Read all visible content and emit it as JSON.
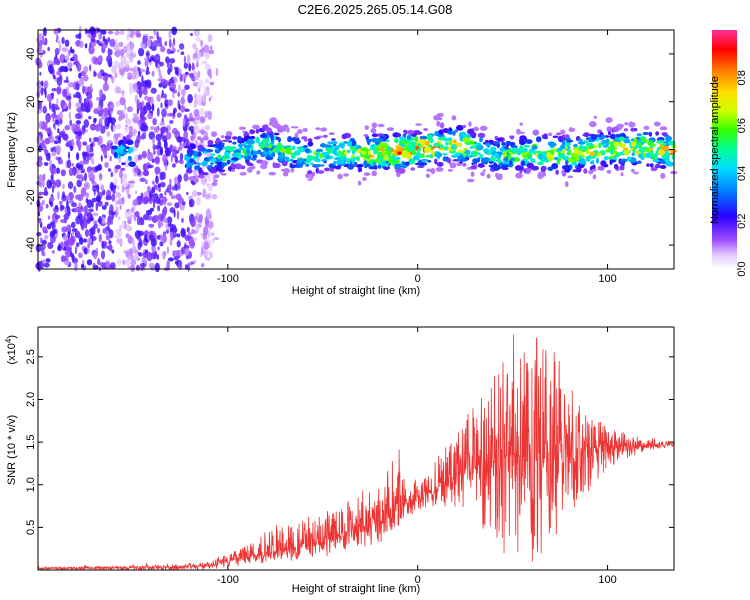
{
  "title": "C2E6.2025.265.05.14.G08",
  "chart_data": [
    {
      "type": "heatmap",
      "name": "spectrogram",
      "xlabel": "Height of straight line (km)",
      "ylabel": "Frequency (Hz)",
      "xlim": [
        -200,
        135
      ],
      "ylim": [
        -50,
        50
      ],
      "x_ticks": [
        -100,
        0,
        100
      ],
      "x_tick_labels": [
        "-100",
        "0",
        "100"
      ],
      "y_ticks": [
        -40,
        -20,
        0,
        20,
        40
      ],
      "y_tick_labels": [
        "-40",
        "-20",
        "0",
        "20",
        "40"
      ],
      "colorbar": {
        "label": "Normalized spectral amplitude",
        "range": [
          0,
          1
        ],
        "ticks": [
          0.0,
          0.2,
          0.4,
          0.6,
          0.8
        ],
        "tick_labels": [
          "0.0",
          "0.2",
          "0.4",
          "0.6",
          "0.8"
        ]
      },
      "band_center_hz": [
        [
          -155,
          -3
        ],
        [
          -140,
          -2
        ],
        [
          -120,
          -3
        ],
        [
          -100,
          -1
        ],
        [
          -80,
          1
        ],
        [
          -60,
          -4
        ],
        [
          -40,
          -1
        ],
        [
          -20,
          0
        ],
        [
          0,
          0
        ],
        [
          20,
          1
        ],
        [
          40,
          -3
        ],
        [
          60,
          0
        ],
        [
          80,
          -1
        ],
        [
          100,
          -1
        ],
        [
          120,
          -1
        ],
        [
          135,
          -1
        ]
      ],
      "band_peak_amplitude": [
        [
          -155,
          0.45
        ],
        [
          -120,
          0.45
        ],
        [
          -100,
          0.55
        ],
        [
          -80,
          0.6
        ],
        [
          -60,
          0.6
        ],
        [
          -40,
          0.65
        ],
        [
          -20,
          0.85
        ],
        [
          0,
          0.9
        ],
        [
          20,
          0.8
        ],
        [
          40,
          0.55
        ],
        [
          60,
          0.7
        ],
        [
          80,
          0.75
        ],
        [
          100,
          0.75
        ],
        [
          120,
          0.8
        ],
        [
          135,
          0.85
        ]
      ]
    },
    {
      "type": "line",
      "name": "snr",
      "xlabel": "Height of straight line (km)",
      "ylabel": "SNR (10 * v/v)",
      "scale_label": "(x10",
      "scale_exponent": "4",
      "scale_close": ")",
      "xlim": [
        -200,
        135
      ],
      "ylim": [
        0,
        2.85
      ],
      "x_ticks": [
        -100,
        0,
        100
      ],
      "x_tick_labels": [
        "-100",
        "0",
        "100"
      ],
      "y_ticks": [
        0.5,
        1.0,
        1.5,
        2.0,
        2.5
      ],
      "y_tick_labels": [
        "0.5",
        "1.0",
        "1.5",
        "2.0",
        "2.5"
      ],
      "color": "#ee3333",
      "envelope": {
        "x": [
          -200,
          -130,
          -110,
          -90,
          -70,
          -50,
          -30,
          -20,
          -10,
          0,
          10,
          20,
          30,
          40,
          50,
          60,
          70,
          80,
          90,
          100,
          110,
          120,
          135
        ],
        "base": [
          0.02,
          0.03,
          0.05,
          0.15,
          0.25,
          0.35,
          0.5,
          0.55,
          0.8,
          0.85,
          0.95,
          1.1,
          1.2,
          1.3,
          1.35,
          1.35,
          1.4,
          1.4,
          1.45,
          1.45,
          1.45,
          1.45,
          1.48
        ],
        "upper": [
          0.03,
          0.06,
          0.1,
          0.3,
          0.6,
          0.65,
          1.0,
          0.95,
          1.5,
          1.0,
          1.3,
          1.7,
          2.0,
          2.3,
          2.8,
          2.8,
          2.7,
          2.2,
          1.9,
          1.7,
          1.6,
          1.55,
          1.52
        ],
        "lower": [
          0.0,
          0.0,
          0.0,
          0.05,
          0.1,
          0.15,
          0.25,
          0.3,
          0.5,
          0.7,
          0.75,
          0.7,
          0.5,
          0.3,
          0.1,
          0.05,
          0.3,
          0.6,
          0.9,
          1.2,
          1.3,
          1.4,
          1.45
        ]
      }
    }
  ]
}
